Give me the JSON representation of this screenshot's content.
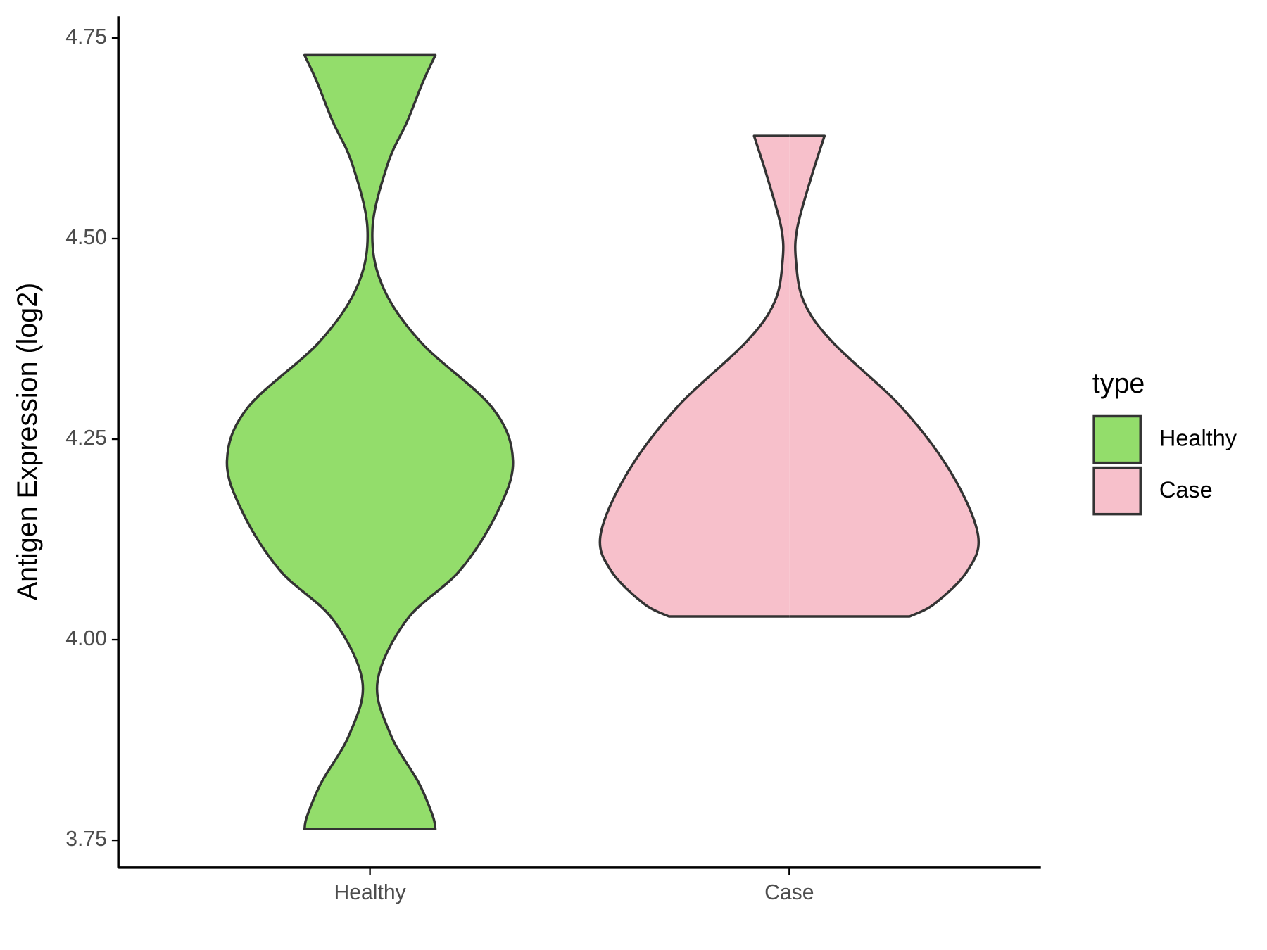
{
  "chart_data": {
    "type": "violin",
    "y_label": "Antigen Expression (log2)",
    "categories": [
      "Healthy",
      "Case"
    ],
    "legend_title": "type",
    "legend_position": "right",
    "ylim": [
      3.716,
      4.777
    ],
    "yticks": [
      {
        "value": 3.75,
        "label": "3.75"
      },
      {
        "value": 4,
        "label": "4.00"
      },
      {
        "value": 4.25,
        "label": "4.25"
      },
      {
        "value": 4.5,
        "label": "4.50"
      },
      {
        "value": 4.75,
        "label": "4.75"
      }
    ],
    "series": [
      {
        "name": "Healthy",
        "color": "#93dd6b",
        "y": [
          4.7286,
          4.696,
          4.645,
          4.594,
          4.513,
          4.442,
          4.371,
          4.289,
          4.223,
          4.157,
          4.086,
          4.025,
          3.948,
          3.882,
          3.821,
          3.78,
          3.764
        ],
        "half_width": [
          0.156,
          0.127,
          0.088,
          0.043,
          0.006,
          0.029,
          0.121,
          0.292,
          0.341,
          0.302,
          0.214,
          0.088,
          0.018,
          0.049,
          0.117,
          0.15,
          0.156
        ]
      },
      {
        "name": "Case",
        "color": "#f7c0cb",
        "y": [
          4.628,
          4.574,
          4.513,
          4.472,
          4.421,
          4.371,
          4.289,
          4.208,
          4.131,
          4.086,
          4.045,
          4.029
        ],
        "half_width": [
          0.084,
          0.051,
          0.019,
          0.016,
          0.035,
          0.103,
          0.269,
          0.386,
          0.45,
          0.425,
          0.347,
          0.287
        ]
      }
    ]
  }
}
